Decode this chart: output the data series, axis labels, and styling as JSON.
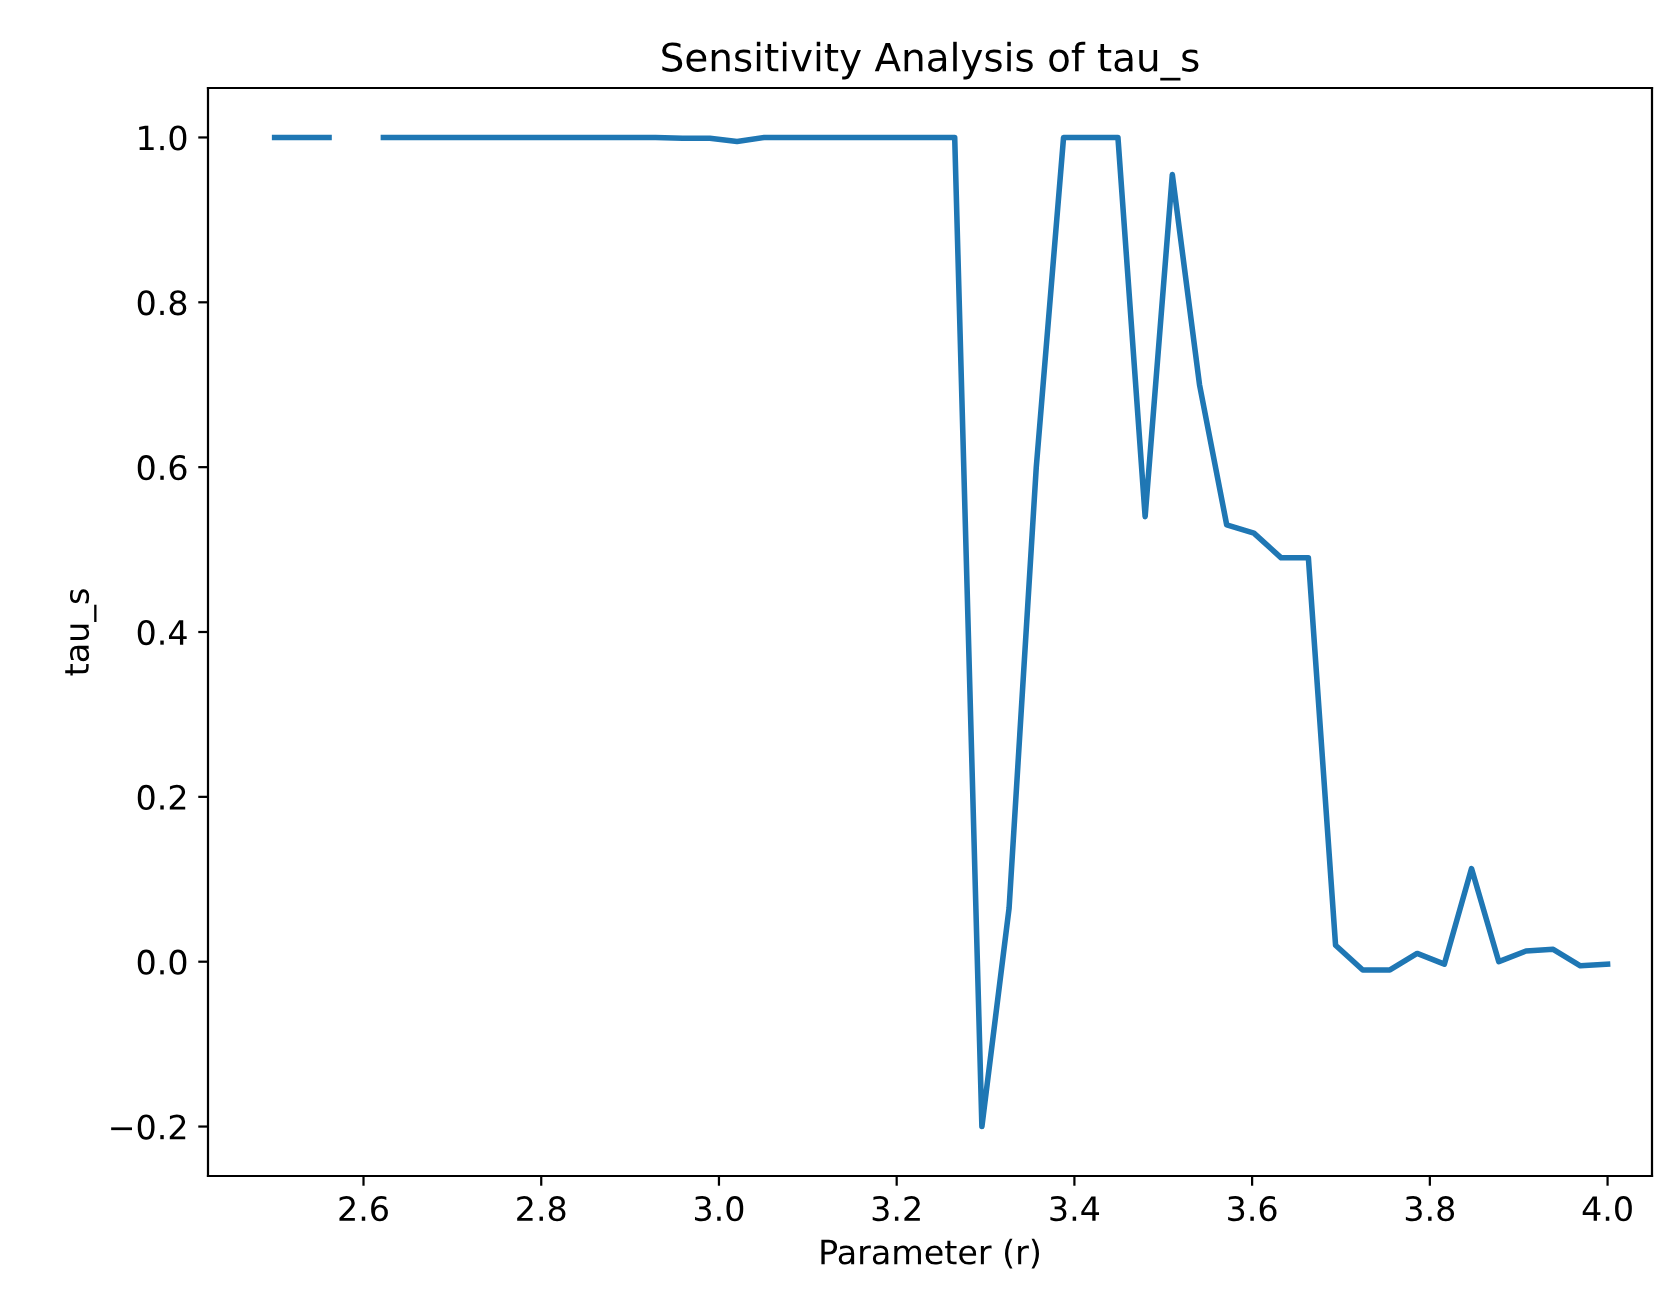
{
  "chart_data": {
    "type": "line",
    "title": "Sensitivity Analysis of tau_s",
    "xlabel": "Parameter (r)",
    "ylabel": "tau_s",
    "x": [
      2.5,
      2.5306,
      2.5612,
      2.5918,
      2.6224,
      2.6531,
      2.6837,
      2.7143,
      2.7449,
      2.7755,
      2.8061,
      2.8367,
      2.8673,
      2.898,
      2.9286,
      2.9592,
      2.9898,
      3.0204,
      3.051,
      3.0816,
      3.1122,
      3.1429,
      3.1735,
      3.2041,
      3.2347,
      3.2653,
      3.2959,
      3.3265,
      3.3571,
      3.3878,
      3.4184,
      3.449,
      3.4796,
      3.5102,
      3.5408,
      3.5714,
      3.602,
      3.6327,
      3.6633,
      3.6939,
      3.7245,
      3.7551,
      3.7857,
      3.8163,
      3.8469,
      3.8776,
      3.9082,
      3.9388,
      3.9694,
      4.0
    ],
    "series": [
      {
        "color": "#1f77b4",
        "values": [
          1.0,
          1.0,
          1.0,
          null,
          1.0,
          1.0,
          1.0,
          1.0,
          1.0,
          1.0,
          1.0,
          1.0,
          1.0,
          1.0,
          1.0,
          0.999,
          0.999,
          0.995,
          1.0,
          1.0,
          1.0,
          1.0,
          1.0,
          1.0,
          1.0,
          1.0,
          -0.2,
          0.065,
          0.6,
          1.0,
          1.0,
          1.0,
          0.54,
          0.955,
          0.7,
          0.53,
          0.52,
          0.49,
          0.49,
          0.02,
          -0.01,
          -0.01,
          0.01,
          -0.003,
          0.113,
          0.0,
          0.013,
          0.015,
          -0.005,
          -0.003
        ]
      }
    ],
    "xlim": [
      2.425,
      4.05
    ],
    "ylim": [
      -0.26,
      1.06
    ],
    "xticks": [
      {
        "value": 2.6,
        "label": "2.6"
      },
      {
        "value": 2.8,
        "label": "2.8"
      },
      {
        "value": 3.0,
        "label": "3.0"
      },
      {
        "value": 3.2,
        "label": "3.2"
      },
      {
        "value": 3.4,
        "label": "3.4"
      },
      {
        "value": 3.6,
        "label": "3.6"
      },
      {
        "value": 3.8,
        "label": "3.8"
      },
      {
        "value": 4.0,
        "label": "4.0"
      }
    ],
    "yticks": [
      {
        "value": -0.2,
        "label": "−0.2"
      },
      {
        "value": 0.0,
        "label": "0.0"
      },
      {
        "value": 0.2,
        "label": "0.2"
      },
      {
        "value": 0.4,
        "label": "0.4"
      },
      {
        "value": 0.6,
        "label": "0.6"
      },
      {
        "value": 0.8,
        "label": "0.8"
      },
      {
        "value": 1.0,
        "label": "1.0"
      }
    ],
    "grid": false,
    "legend": false
  }
}
